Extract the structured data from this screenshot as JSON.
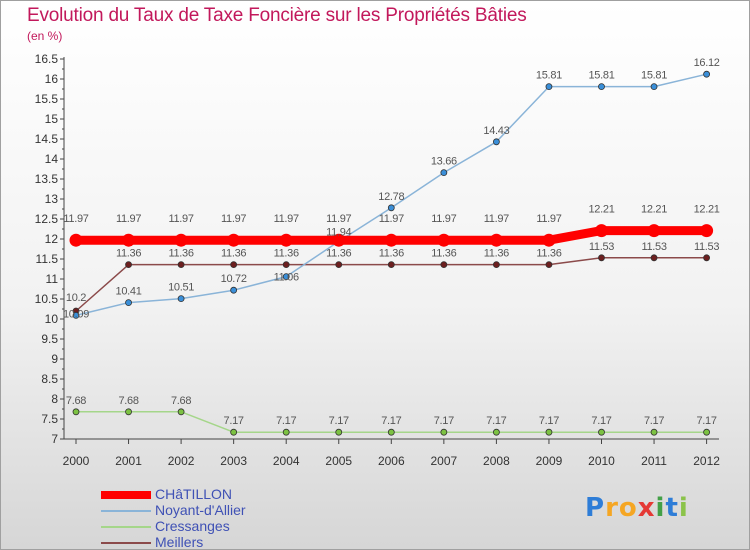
{
  "title": "Evolution du Taux de Taxe Foncière sur les Propriétés Bâties",
  "unit": "(en %)",
  "logo": {
    "text": "Proxiti",
    "letters": [
      "P",
      "r",
      "o",
      "x",
      "i",
      "t",
      "i"
    ],
    "colors": [
      "#2e7dd7",
      "#f5a623",
      "#f5a623",
      "#e53935",
      "#43a047",
      "#2e7dd7",
      "#8bc34a"
    ]
  },
  "chart_data": {
    "type": "line",
    "title": "Evolution du Taux de Taxe Foncière sur les Propriétés Bâties",
    "ylabel": "(en %)",
    "xlabel": "",
    "categories": [
      "2000",
      "2001",
      "2002",
      "2003",
      "2004",
      "2005",
      "2006",
      "2007",
      "2008",
      "2009",
      "2010",
      "2011",
      "2012"
    ],
    "ylim": [
      7,
      16.5
    ],
    "yticks": [
      "7",
      "7.5",
      "8",
      "8.5",
      "9",
      "9.5",
      "10",
      "10.5",
      "11",
      "11.5",
      "12",
      "12.5",
      "13",
      "13.5",
      "14",
      "14.5",
      "15",
      "15.5",
      "16",
      "16.5"
    ],
    "legend_position": "bottom-left",
    "series": [
      {
        "name": "CHâTILLON",
        "color": "#ff0000",
        "marker_fill": "#ff0000",
        "values": [
          11.97,
          11.97,
          11.97,
          11.97,
          11.97,
          11.97,
          11.97,
          11.97,
          11.97,
          11.97,
          12.21,
          12.21,
          12.21
        ],
        "labels": [
          "11.97",
          "11.97",
          "11.97",
          "11.97",
          "11.97",
          "11.97",
          "11.97",
          "11.97",
          "11.97",
          "11.97",
          "12.21",
          "12.21",
          "12.21"
        ]
      },
      {
        "name": "Noyant-d'Allier",
        "color": "#8ab4d8",
        "marker_fill": "#3a8fd9",
        "values": [
          10.09,
          10.41,
          10.51,
          10.72,
          11.06,
          11.94,
          12.78,
          13.66,
          14.43,
          15.81,
          15.81,
          15.81,
          16.12
        ],
        "labels": [
          "10.09",
          "10.41",
          "10.51",
          "10.72",
          "11.06",
          "11.94",
          "12.78",
          "13.66",
          "14.43",
          "15.81",
          "15.81",
          "15.81",
          "16.12"
        ]
      },
      {
        "name": "Cressanges",
        "color": "#a5d68a",
        "marker_fill": "#7cc242",
        "values": [
          7.68,
          7.68,
          7.68,
          7.17,
          7.17,
          7.17,
          7.17,
          7.17,
          7.17,
          7.17,
          7.17,
          7.17,
          7.17
        ],
        "labels": [
          "7.68",
          "7.68",
          "7.68",
          "7.17",
          "7.17",
          "7.17",
          "7.17",
          "7.17",
          "7.17",
          "7.17",
          "7.17",
          "7.17",
          "7.17"
        ]
      },
      {
        "name": "Meillers",
        "color": "#8b4a4a",
        "marker_fill": "#6d1f1f",
        "values": [
          10.2,
          11.36,
          11.36,
          11.36,
          11.36,
          11.36,
          11.36,
          11.36,
          11.36,
          11.36,
          11.53,
          11.53,
          11.53
        ],
        "labels": [
          "10.2",
          "11.36",
          "11.36",
          "11.36",
          "11.36",
          "11.36",
          "11.36",
          "11.36",
          "11.36",
          "11.36",
          "11.53",
          "11.53",
          "11.53"
        ]
      }
    ]
  }
}
